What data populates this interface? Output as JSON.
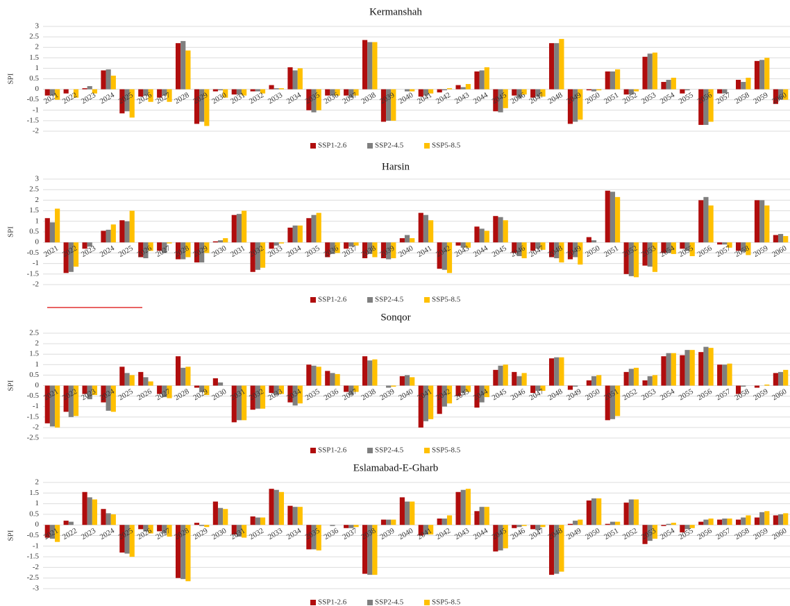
{
  "chart_data": [
    {
      "type": "bar",
      "title": "Kermanshah",
      "y_label": "SPI",
      "categories": [
        "2021",
        "2022",
        "2023",
        "2024",
        "2025",
        "2026",
        "2027",
        "2028",
        "2029",
        "2030",
        "2031",
        "2032",
        "2033",
        "2034",
        "2035",
        "2036",
        "2037",
        "2038",
        "2039",
        "2040",
        "2041",
        "2042",
        "2043",
        "2044",
        "2045",
        "2046",
        "2047",
        "2048",
        "2049",
        "2050",
        "2051",
        "2052",
        "2053",
        "2054",
        "2055",
        "2056",
        "2057",
        "2058",
        "2059",
        "2060"
      ],
      "series": [
        {
          "name": "SSP1-2.6",
          "color": "#b00d0d",
          "values": [
            -0.3,
            -0.2,
            0.05,
            0.9,
            -1.15,
            -0.35,
            -0.4,
            2.2,
            -1.65,
            -0.1,
            -0.25,
            -0.1,
            0.2,
            1.05,
            -1.0,
            -0.3,
            -0.3,
            2.35,
            -1.55,
            0,
            -0.35,
            -0.15,
            0.2,
            0.85,
            -1.05,
            -0.3,
            -0.4,
            2.2,
            -1.65,
            -0.05,
            0.85,
            -0.25,
            1.55,
            0.35,
            -0.2,
            -1.7,
            -0.2,
            0.45,
            1.35,
            -0.7
          ]
        },
        {
          "name": "SSP2-4.5",
          "color": "#7f7f7f",
          "values": [
            -0.3,
            0,
            0.15,
            0.95,
            -1.05,
            -0.3,
            -0.3,
            2.3,
            -1.55,
            -0.05,
            -0.25,
            -0.1,
            0.05,
            0.9,
            -1.1,
            -0.3,
            -0.4,
            2.25,
            -1.5,
            -0.1,
            -0.3,
            -0.05,
            0.1,
            0.9,
            -1.1,
            -0.4,
            -0.35,
            2.2,
            -1.55,
            -0.1,
            0.85,
            -0.25,
            1.7,
            0.45,
            -0.05,
            -1.7,
            -0.2,
            0.35,
            1.4,
            -0.5
          ]
        },
        {
          "name": "SSP5-8.5",
          "color": "#ffc000",
          "values": [
            -0.5,
            -0.4,
            -0.2,
            0.65,
            -1.35,
            -0.6,
            -0.6,
            1.85,
            -1.75,
            -0.4,
            -0.3,
            -0.2,
            0.05,
            1.0,
            -1.0,
            -0.3,
            -0.3,
            2.25,
            -1.5,
            -0.1,
            -0.2,
            0.05,
            0.25,
            1.05,
            -0.9,
            -0.25,
            -0.35,
            2.4,
            -1.45,
            -0.05,
            0.95,
            -0.1,
            1.75,
            0.55,
            0,
            -1.55,
            0,
            0.55,
            1.5,
            -0.5
          ]
        }
      ],
      "ylim": [
        -2,
        3
      ],
      "yticks": [
        -2,
        -1.5,
        -1,
        -0.5,
        0,
        0.5,
        1,
        1.5,
        2,
        2.5,
        3
      ],
      "grid": true,
      "legend": "bottom"
    },
    {
      "type": "bar",
      "title": "Harsin",
      "y_label": "SPI",
      "categories": [
        "2021",
        "2022",
        "2023",
        "2024",
        "2025",
        "2026",
        "2027",
        "2028",
        "2029",
        "2030",
        "2031",
        "2032",
        "2033",
        "2034",
        "2035",
        "2036",
        "2037",
        "2038",
        "2039",
        "2040",
        "2041",
        "2042",
        "2043",
        "2044",
        "2045",
        "2046",
        "2047",
        "2048",
        "2049",
        "2050",
        "2051",
        "2052",
        "2053",
        "2054",
        "2055",
        "2056",
        "2057",
        "2058",
        "2059",
        "2060"
      ],
      "series": [
        {
          "name": "SSP1-2.6",
          "color": "#b00d0d",
          "values": [
            1.15,
            -1.45,
            -0.3,
            0.55,
            1.05,
            -0.7,
            -0.4,
            -0.8,
            -0.95,
            0.05,
            1.3,
            -1.4,
            -0.3,
            0.7,
            1.15,
            -0.7,
            -0.3,
            -0.75,
            -0.75,
            0.2,
            1.4,
            -1.25,
            -0.15,
            0.75,
            1.25,
            -0.5,
            -0.4,
            -0.7,
            -0.8,
            0.25,
            2.45,
            -1.5,
            -1.1,
            -0.5,
            -0.3,
            2.0,
            -0.1,
            -0.4,
            2.0,
            0.35
          ]
        },
        {
          "name": "SSP2-4.5",
          "color": "#7f7f7f",
          "values": [
            0.95,
            -1.4,
            -0.2,
            0.6,
            1.0,
            -0.75,
            -0.5,
            -0.8,
            -0.95,
            0.1,
            1.35,
            -1.3,
            -0.15,
            0.8,
            1.3,
            -0.55,
            -0.2,
            -0.55,
            -0.8,
            0.35,
            1.3,
            -1.3,
            -0.25,
            0.65,
            1.2,
            -0.65,
            -0.3,
            -0.75,
            -0.7,
            0.1,
            2.4,
            -1.6,
            -1.15,
            -0.5,
            -0.4,
            2.15,
            -0.1,
            -0.45,
            2.0,
            0.4
          ]
        },
        {
          "name": "SSP5-8.5",
          "color": "#ffc000",
          "values": [
            1.6,
            -1.15,
            0,
            0.85,
            1.5,
            -0.4,
            -0.05,
            -0.7,
            -0.5,
            0.2,
            1.5,
            -1.2,
            -0.05,
            0.8,
            1.4,
            -0.5,
            -0.15,
            -0.7,
            -0.75,
            0.2,
            1.05,
            -1.45,
            -0.25,
            0.55,
            1.05,
            -0.75,
            -0.35,
            -0.95,
            -1.05,
            0,
            2.15,
            -1.65,
            -1.4,
            -0.55,
            -0.65,
            1.75,
            -0.25,
            -0.6,
            1.75,
            0.3
          ]
        }
      ],
      "ylim": [
        -2,
        3
      ],
      "yticks": [
        -2,
        -1.5,
        -1,
        -0.5,
        0,
        0.5,
        1,
        1.5,
        2,
        2.5,
        3
      ],
      "grid": true,
      "legend": "bottom"
    },
    {
      "type": "bar",
      "title": "Sonqor",
      "y_label": "SPI",
      "categories": [
        "2021",
        "2022",
        "2023",
        "2024",
        "2025",
        "2026",
        "2027",
        "2028",
        "2029",
        "2030",
        "2031",
        "2032",
        "2033",
        "2034",
        "2035",
        "2036",
        "2037",
        "2038",
        "2039",
        "2040",
        "2041",
        "2042",
        "2043",
        "2044",
        "2045",
        "2046",
        "2047",
        "2048",
        "2049",
        "2050",
        "2051",
        "2052",
        "2053",
        "2054",
        "2055",
        "2056",
        "2057",
        "2058",
        "2059",
        "2060"
      ],
      "series": [
        {
          "name": "SSP1-2.6",
          "color": "#b00d0d",
          "values": [
            -1.8,
            -1.25,
            -0.4,
            -0.8,
            0.9,
            0.65,
            -0.4,
            1.4,
            -0.1,
            0.35,
            -1.75,
            -1.15,
            -0.35,
            -0.8,
            1.0,
            0.7,
            -0.3,
            1.4,
            0,
            0.45,
            -2.0,
            -1.35,
            -0.5,
            -1.05,
            0.75,
            0.65,
            -0.35,
            1.3,
            -0.2,
            0.25,
            -1.65,
            0.65,
            0.25,
            1.4,
            1.45,
            1.6,
            1.0,
            -0.4,
            -0.1,
            0.6
          ]
        },
        {
          "name": "SSP2-4.5",
          "color": "#7f7f7f",
          "values": [
            -1.95,
            -1.5,
            -0.65,
            -1.2,
            0.6,
            0.4,
            -0.55,
            0.85,
            -0.3,
            0.15,
            -1.65,
            -1.1,
            -0.45,
            -0.95,
            0.95,
            0.6,
            -0.45,
            1.2,
            -0.1,
            0.5,
            -1.7,
            -1.0,
            -0.35,
            -0.8,
            0.95,
            0.45,
            -0.25,
            1.35,
            -0.05,
            0.45,
            -1.6,
            0.8,
            0.45,
            1.55,
            1.7,
            1.85,
            1.0,
            -0.05,
            0,
            0.65
          ]
        },
        {
          "name": "SSP5-8.5",
          "color": "#ffc000",
          "values": [
            -2.0,
            -1.45,
            -0.45,
            -1.25,
            0.5,
            0.2,
            -0.6,
            0.9,
            -0.45,
            0,
            -1.65,
            -1.1,
            -0.4,
            -0.85,
            0.9,
            0.55,
            -0.3,
            1.25,
            -0.05,
            0.4,
            -1.6,
            -0.85,
            -0.3,
            -0.55,
            1.0,
            0.6,
            -0.25,
            1.35,
            0,
            0.5,
            -1.45,
            0.85,
            0.5,
            1.55,
            1.7,
            1.8,
            1.05,
            0,
            0.05,
            0.75
          ]
        }
      ],
      "ylim": [
        -2.5,
        2.5
      ],
      "yticks": [
        -2.5,
        -2,
        -1.5,
        -1,
        -0.5,
        0,
        0.5,
        1,
        1.5,
        2,
        2.5
      ],
      "grid": true,
      "legend": "bottom"
    },
    {
      "type": "bar",
      "title": "Eslamabad-E-Gharb",
      "y_label": "SPI",
      "categories": [
        "2021",
        "2022",
        "2023",
        "2024",
        "2025",
        "2026",
        "2027",
        "2028",
        "2029",
        "2030",
        "2031",
        "2032",
        "2033",
        "2034",
        "2035",
        "2036",
        "2037",
        "2038",
        "2039",
        "2040",
        "2041",
        "2042",
        "2043",
        "2044",
        "2045",
        "2046",
        "2047",
        "2048",
        "2049",
        "2050",
        "2051",
        "2052",
        "2053",
        "2054",
        "2055",
        "2056",
        "2057",
        "2058",
        "2059",
        "2060"
      ],
      "series": [
        {
          "name": "SSP1-2.6",
          "color": "#b00d0d",
          "values": [
            -0.6,
            0.2,
            1.55,
            0.75,
            -1.3,
            -0.2,
            -0.3,
            -2.5,
            0.1,
            1.1,
            -0.45,
            0.4,
            1.7,
            0.9,
            -1.15,
            0,
            -0.15,
            -2.3,
            0.25,
            1.3,
            -0.5,
            0.3,
            1.55,
            0.65,
            -1.25,
            -0.15,
            -0.2,
            -2.35,
            0.05,
            1.15,
            0.05,
            1.05,
            -0.9,
            -0.05,
            -0.35,
            0.15,
            0.25,
            0.25,
            0.35,
            0.45
          ]
        },
        {
          "name": "SSP2-4.5",
          "color": "#7f7f7f",
          "values": [
            -0.65,
            0.15,
            1.3,
            0.55,
            -1.35,
            -0.3,
            -0.4,
            -2.55,
            -0.05,
            0.8,
            -0.55,
            0.35,
            1.65,
            0.85,
            -1.15,
            -0.05,
            -0.15,
            -2.35,
            0.25,
            1.1,
            -0.45,
            0.3,
            1.65,
            0.85,
            -1.2,
            -0.1,
            -0.25,
            -2.3,
            0.2,
            1.25,
            0.15,
            1.2,
            -0.75,
            0.05,
            -0.2,
            0.25,
            0.3,
            0.35,
            0.6,
            0.5
          ]
        },
        {
          "name": "SSP5-8.5",
          "color": "#ffc000",
          "values": [
            -0.8,
            0,
            1.2,
            0.5,
            -1.5,
            -0.4,
            -0.55,
            -2.65,
            -0.1,
            0.75,
            -0.6,
            0.35,
            1.55,
            0.85,
            -1.2,
            0,
            -0.1,
            -2.35,
            0.25,
            1.1,
            -0.45,
            0.45,
            1.7,
            0.85,
            -1.1,
            -0.05,
            -0.1,
            -2.2,
            0.25,
            1.25,
            0.15,
            1.2,
            -0.65,
            0.1,
            -0.15,
            0.3,
            0.3,
            0.45,
            0.65,
            0.55
          ]
        }
      ],
      "ylim": [
        -3,
        2
      ],
      "yticks": [
        -3,
        -2.5,
        -2,
        -1.5,
        -1,
        -0.5,
        0,
        0.5,
        1,
        1.5,
        2
      ],
      "grid": true,
      "legend": "bottom"
    }
  ]
}
